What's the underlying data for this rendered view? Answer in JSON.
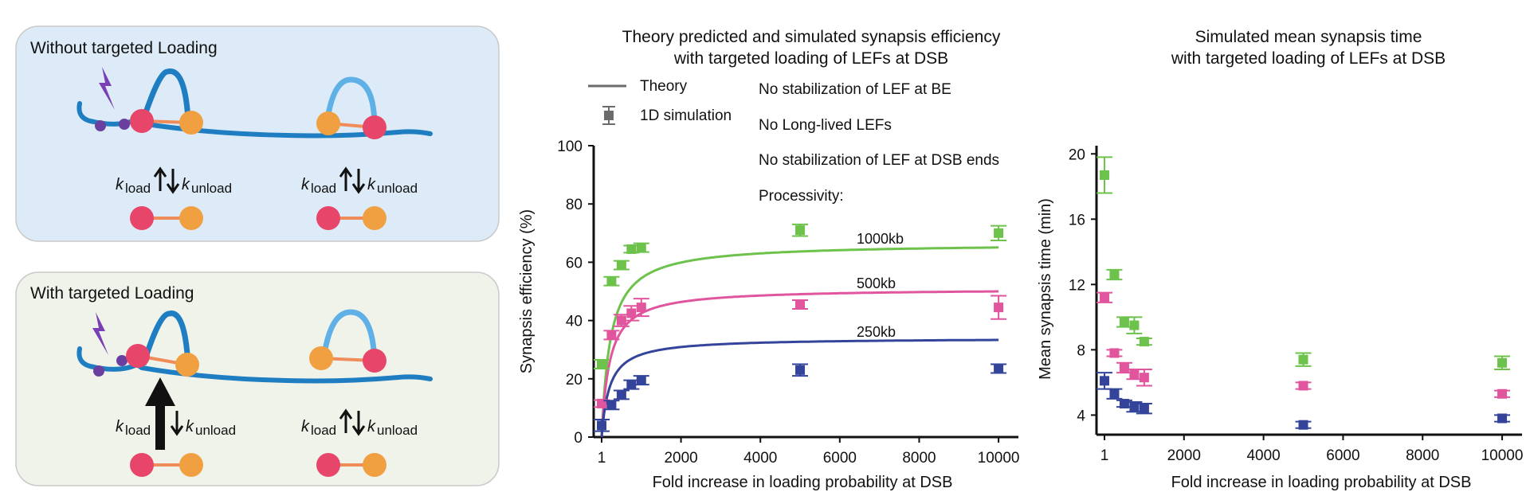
{
  "colors": {
    "green": "#6cc24a",
    "pink": "#e0559e",
    "navy": "#33449a",
    "theory_line": "#6b6b6b",
    "panel_top_bg": "#dcebf7",
    "panel_bottom_bg": "#eff3ea",
    "dna": "#1f7ec2",
    "dna_light": "#5fb0e6",
    "loader": "#f08c5a",
    "lightning": "#7b3fb5"
  },
  "schematic": {
    "top_title": "Without targeted Loading",
    "bottom_title": "With targeted Loading",
    "k_symbol": "k",
    "load_sub": "load",
    "unload_sub": "unload"
  },
  "legend": {
    "theory_label": "Theory",
    "sim_label": "1D simulation"
  },
  "conditions": [
    "No stabilization of LEF at BE",
    "No Long-lived LEFs",
    "No stabilization of LEF at DSB ends",
    "Processivity:"
  ],
  "chart_data": [
    {
      "type": "line+errorbar",
      "title_line1": "Theory predicted and simulated synapsis efficiency",
      "title_line2": "with targeted loading of LEFs at DSB",
      "xlabel": "Fold increase in loading probability at DSB",
      "ylabel": "Synapsis efficiency (%)",
      "xlim": [
        -200,
        10500
      ],
      "ylim": [
        0,
        100
      ],
      "xticks": [
        1,
        2000,
        4000,
        6000,
        8000,
        10000
      ],
      "yticks": [
        0,
        20,
        40,
        60,
        80,
        100
      ],
      "series": [
        {
          "name": "1000kb",
          "color_key": "green",
          "theory": {
            "amax": 66.5,
            "half": 220,
            "x0": 1,
            "y0": 0
          },
          "x": [
            1,
            250,
            500,
            750,
            1000,
            5000,
            10000
          ],
          "y": [
            25,
            53.5,
            59,
            64.5,
            65,
            71,
            70
          ],
          "err": [
            1.5,
            1.5,
            1.5,
            1.2,
            1.5,
            2,
            2.5
          ]
        },
        {
          "name": "500kb",
          "color_key": "pink",
          "theory": {
            "amax": 51,
            "half": 200,
            "x0": 1,
            "y0": 0
          },
          "x": [
            1,
            250,
            500,
            750,
            1000,
            5000,
            10000
          ],
          "y": [
            11.5,
            35,
            40,
            42.5,
            44.5,
            45.5,
            44.5
          ],
          "err": [
            1.2,
            1.5,
            2,
            2.5,
            3,
            1.5,
            4
          ]
        },
        {
          "name": "250kb",
          "color_key": "navy",
          "theory": {
            "amax": 34,
            "half": 200,
            "x0": 1,
            "y0": 0
          },
          "x": [
            1,
            250,
            500,
            750,
            1000,
            5000,
            10000
          ],
          "y": [
            4,
            11,
            14.5,
            18,
            19.5,
            23,
            23.5
          ],
          "err": [
            2,
            1.5,
            1.5,
            1.5,
            1.5,
            2,
            1.5
          ]
        }
      ]
    },
    {
      "type": "errorbar",
      "title_line1": "Simulated mean synapsis time",
      "title_line2": "with targeted loading of LEFs at DSB",
      "xlabel": "Fold increase in loading probability at DSB",
      "ylabel": "Mean synapsis time (min)",
      "xlim": [
        -200,
        10500
      ],
      "ylim": [
        2.8,
        20.5
      ],
      "xticks": [
        1,
        2000,
        4000,
        6000,
        8000,
        10000
      ],
      "yticks": [
        4,
        8,
        12,
        16,
        20
      ],
      "series": [
        {
          "name": "1000kb",
          "color_key": "green",
          "x": [
            1,
            250,
            500,
            750,
            1000,
            5000,
            10000
          ],
          "y": [
            18.7,
            12.6,
            9.7,
            9.5,
            8.5,
            7.4,
            7.2
          ],
          "err": [
            1.1,
            0.3,
            0.3,
            0.5,
            0.2,
            0.4,
            0.4
          ]
        },
        {
          "name": "500kb",
          "color_key": "pink",
          "x": [
            1,
            250,
            500,
            750,
            1000,
            5000,
            10000
          ],
          "y": [
            11.2,
            7.8,
            6.9,
            6.5,
            6.3,
            5.8,
            5.3
          ],
          "err": [
            0.3,
            0.2,
            0.3,
            0.3,
            0.5,
            0.2,
            0.2
          ]
        },
        {
          "name": "250kb",
          "color_key": "navy",
          "x": [
            1,
            250,
            500,
            750,
            1000,
            5000,
            10000
          ],
          "y": [
            6.1,
            5.3,
            4.7,
            4.5,
            4.4,
            3.4,
            3.8
          ],
          "err": [
            0.5,
            0.3,
            0.2,
            0.3,
            0.3,
            0.2,
            0.2
          ]
        }
      ]
    }
  ]
}
